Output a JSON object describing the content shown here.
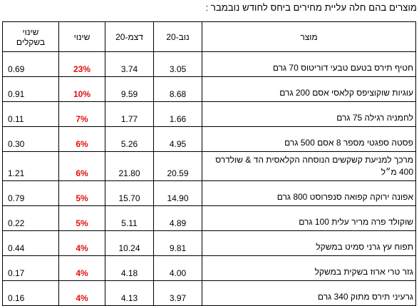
{
  "title": "מוצרים בהם חלה עליית מחירים ביחס לחודש נובמבר :",
  "columns": {
    "shekel_change": "שינוי בשקלים",
    "pct_change": "שינוי",
    "dec": "דצמ-20",
    "nov": "נוב-20",
    "product": "מוצר"
  },
  "rows": [
    {
      "product": "חטיף תירס בטעם טבעי דוריטוס 70 גרם",
      "nov": "3.05",
      "dec": "3.74",
      "pct": "23%",
      "shekel": "0.69"
    },
    {
      "product": "עוגיות שוקוציפס קלאסי אסם 200 גרם",
      "nov": "8.68",
      "dec": "9.59",
      "pct": "10%",
      "shekel": "0.91"
    },
    {
      "product": "לחמניה רגילה 75 גרם",
      "nov": "1.66",
      "dec": "1.77",
      "pct": "7%",
      "shekel": "0.11"
    },
    {
      "product": "פסטה ספגטי מספר 8 אסם 500 גרם",
      "nov": "4.95",
      "dec": "5.26",
      "pct": "6%",
      "shekel": "0.30"
    },
    {
      "product": "מרכך למניעת קשקשים הנוסחה הקלאסית הד & שולדרס 400 מ״ל",
      "nov": "20.59",
      "dec": "21.80",
      "pct": "6%",
      "shekel": "1.21"
    },
    {
      "product": "אפונה ירוקה קפואה סנפרוסט 800 גרם",
      "nov": "14.90",
      "dec": "15.70",
      "pct": "5%",
      "shekel": "0.79"
    },
    {
      "product": "שוקולד פרה מריר עלית 100 גרם",
      "nov": "4.89",
      "dec": "5.11",
      "pct": "5%",
      "shekel": "0.22"
    },
    {
      "product": "תפוח עץ גרני סמיט במשקל",
      "nov": "9.81",
      "dec": "10.24",
      "pct": "4%",
      "shekel": "0.44"
    },
    {
      "product": "גזר טרי ארוז בשקית במשקל",
      "nov": "4.00",
      "dec": "4.18",
      "pct": "4%",
      "shekel": "0.17"
    },
    {
      "product": "גרעיני תירס מתוק 340 גרם",
      "nov": "3.97",
      "dec": "4.13",
      "pct": "4%",
      "shekel": "0.16"
    }
  ]
}
